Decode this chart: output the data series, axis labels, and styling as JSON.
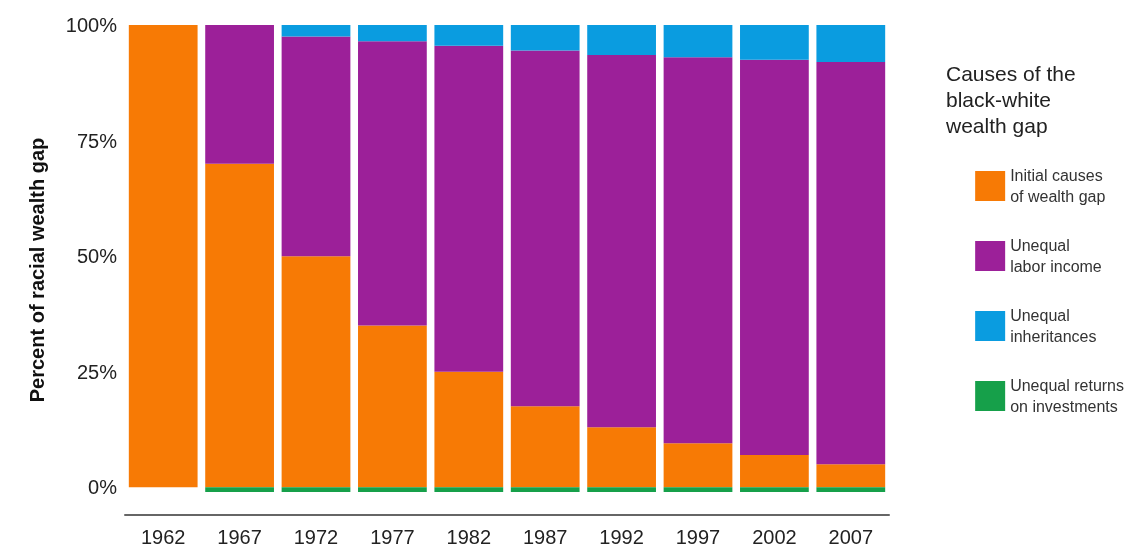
{
  "chart_data": {
    "type": "bar",
    "stacked": true,
    "ylabel": "Percent of racial wealth gap",
    "legend_title": "Causes of the black-white wealth gap",
    "categories": [
      "1962",
      "1967",
      "1972",
      "1977",
      "1982",
      "1987",
      "1992",
      "1997",
      "2002",
      "2007"
    ],
    "series": [
      {
        "name": "Initial causes of wealth gap",
        "color": "#f77a05",
        "values": [
          100,
          70,
          50,
          35,
          25,
          17.5,
          13,
          9.5,
          7,
          5
        ]
      },
      {
        "name": "Unequal labor income",
        "color": "#9c2099",
        "values": [
          0,
          30,
          47.5,
          61.5,
          70.5,
          77,
          80.5,
          83.5,
          85.5,
          87
        ]
      },
      {
        "name": "Unequal inheritances",
        "color": "#0a9ce0",
        "values": [
          0,
          0,
          2.5,
          3.5,
          4.5,
          5.5,
          6.5,
          7,
          7.5,
          8
        ]
      },
      {
        "name": "Unequal returns on investments",
        "color": "#16a04a",
        "values": [
          null,
          -1,
          -1,
          -1,
          -1,
          -1,
          -1,
          -1,
          -1,
          -1
        ]
      }
    ],
    "ylim": [
      -6,
      100
    ],
    "yticks": [
      {
        "value": 0,
        "label": "0%"
      },
      {
        "value": 25,
        "label": "25%"
      },
      {
        "value": 50,
        "label": "50%"
      },
      {
        "value": 75,
        "label": "75%"
      },
      {
        "value": 100,
        "label": "100%"
      }
    ],
    "grid": false,
    "legend": "right"
  }
}
